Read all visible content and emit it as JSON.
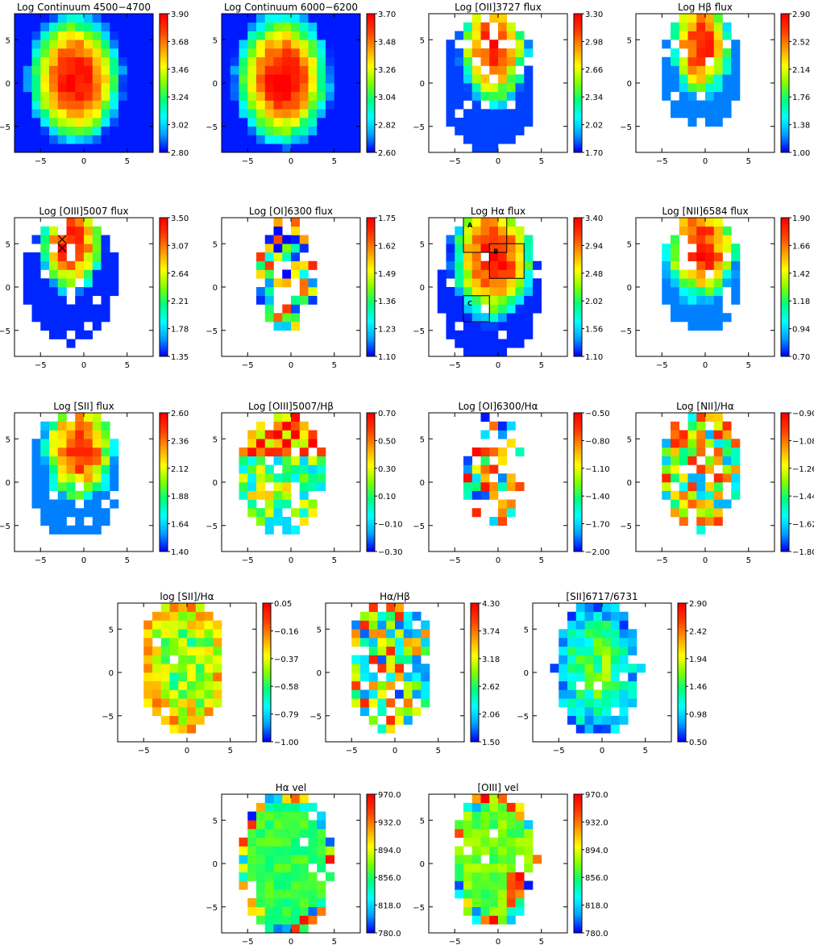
{
  "figure": {
    "colors": {
      "colormap": [
        "#0000ff",
        "#00a0ff",
        "#00ffff",
        "#00ff80",
        "#80ff00",
        "#ffff00",
        "#ffa000",
        "#ff4000",
        "#ff0000"
      ],
      "axes": "#000000",
      "marker": "#000000",
      "region_box": "#000000"
    }
  },
  "chart_data": [
    {
      "type": "heatmap",
      "title": "Log Continuum 4500−4700",
      "xlim": [
        -8,
        8
      ],
      "ylim": [
        -8,
        8
      ],
      "cbar_ticks": [
        "3.90",
        "3.68",
        "3.46",
        "3.24",
        "3.02",
        "2.80"
      ],
      "cmin": 2.8,
      "cmax": 3.9,
      "pattern": "cont1"
    },
    {
      "type": "heatmap",
      "title": "Log Continuum 6000−6200",
      "xlim": [
        -8,
        8
      ],
      "ylim": [
        -8,
        8
      ],
      "cbar_ticks": [
        "3.70",
        "3.48",
        "3.26",
        "3.04",
        "2.82",
        "2.60"
      ],
      "cmin": 2.6,
      "cmax": 3.7,
      "pattern": "cont2"
    },
    {
      "type": "heatmap",
      "title": "Log [OII]3727 flux",
      "xlim": [
        -8,
        8
      ],
      "ylim": [
        -8,
        8
      ],
      "cbar_ticks": [
        "3.30",
        "2.98",
        "2.66",
        "2.34",
        "2.02",
        "1.70"
      ],
      "cmin": 1.7,
      "cmax": 3.3,
      "pattern": "oii"
    },
    {
      "type": "heatmap",
      "title": "Log Hβ flux",
      "xlim": [
        -8,
        8
      ],
      "ylim": [
        -8,
        8
      ],
      "cbar_ticks": [
        "2.90",
        "2.52",
        "2.14",
        "1.76",
        "1.38",
        "1.00"
      ],
      "cmin": 1.0,
      "cmax": 2.9,
      "pattern": "hb"
    },
    {
      "type": "heatmap",
      "title": "Log [OIII]5007 flux",
      "xlim": [
        -8,
        8
      ],
      "ylim": [
        -8,
        8
      ],
      "cbar_ticks": [
        "3.50",
        "3.07",
        "2.64",
        "2.21",
        "1.78",
        "1.35"
      ],
      "cmin": 1.35,
      "cmax": 3.5,
      "pattern": "oiii",
      "markers": [
        {
          "x": -2.5,
          "y": 5.5,
          "symbol": "x"
        },
        {
          "x": -2.5,
          "y": 4.5,
          "symbol": "x"
        }
      ]
    },
    {
      "type": "heatmap",
      "title": "Log [OI]6300 flux",
      "xlim": [
        -8,
        8
      ],
      "ylim": [
        -8,
        8
      ],
      "cbar_ticks": [
        "1.75",
        "1.62",
        "1.49",
        "1.36",
        "1.23",
        "1.10"
      ],
      "cmin": 1.1,
      "cmax": 1.75,
      "pattern": "oi"
    },
    {
      "type": "heatmap",
      "title": "Log Hα flux",
      "xlim": [
        -8,
        8
      ],
      "ylim": [
        -8,
        8
      ],
      "cbar_ticks": [
        "3.40",
        "2.94",
        "2.48",
        "2.02",
        "1.56",
        "1.10"
      ],
      "cmin": 1.1,
      "cmax": 3.4,
      "pattern": "ha",
      "regions": [
        {
          "label": "A",
          "x0": -4,
          "x1": 1,
          "y0": 4,
          "y1": 8
        },
        {
          "label": "B",
          "x0": -1,
          "x1": 3,
          "y0": 1,
          "y1": 5
        },
        {
          "label": "C",
          "x0": -4,
          "x1": -1,
          "y0": -4,
          "y1": -1
        }
      ]
    },
    {
      "type": "heatmap",
      "title": "Log [NII]6584 flux",
      "xlim": [
        -8,
        8
      ],
      "ylim": [
        -8,
        8
      ],
      "cbar_ticks": [
        "1.90",
        "1.66",
        "1.42",
        "1.18",
        "0.94",
        "0.70"
      ],
      "cmin": 0.7,
      "cmax": 1.9,
      "pattern": "nii"
    },
    {
      "type": "heatmap",
      "title": "Log [SII] flux",
      "xlim": [
        -8,
        8
      ],
      "ylim": [
        -8,
        8
      ],
      "cbar_ticks": [
        "2.60",
        "2.36",
        "2.12",
        "1.88",
        "1.64",
        "1.40"
      ],
      "cmin": 1.4,
      "cmax": 2.6,
      "pattern": "sii"
    },
    {
      "type": "heatmap",
      "title": "Log [OIII]5007/Hβ",
      "xlim": [
        -8,
        8
      ],
      "ylim": [
        -8,
        8
      ],
      "cbar_ticks": [
        "0.70",
        "0.50",
        "0.30",
        "0.10",
        "−0.10",
        "−0.30"
      ],
      "cmin": -0.3,
      "cmax": 0.7,
      "pattern": "oiiihb"
    },
    {
      "type": "heatmap",
      "title": "Log [OI]6300/Hα",
      "xlim": [
        -8,
        8
      ],
      "ylim": [
        -8,
        8
      ],
      "cbar_ticks": [
        "−0.50",
        "−0.80",
        "−1.10",
        "−1.40",
        "−1.70",
        "−2.00"
      ],
      "cmin": -2.0,
      "cmax": -0.5,
      "pattern": "oiha"
    },
    {
      "type": "heatmap",
      "title": "Log [NII]/Hα",
      "xlim": [
        -8,
        8
      ],
      "ylim": [
        -8,
        8
      ],
      "cbar_ticks": [
        "−0.90",
        "−1.08",
        "−1.26",
        "−1.44",
        "−1.62",
        "−1.80"
      ],
      "cmin": -1.8,
      "cmax": -0.9,
      "pattern": "niiha"
    },
    {
      "type": "heatmap",
      "title": "log [SII]/Hα",
      "xlim": [
        -8,
        8
      ],
      "ylim": [
        -8,
        8
      ],
      "cbar_ticks": [
        "0.05",
        "−0.16",
        "−0.37",
        "−0.58",
        "−0.79",
        "−1.00"
      ],
      "cmin": -1.0,
      "cmax": 0.05,
      "pattern": "siiha"
    },
    {
      "type": "heatmap",
      "title": "Hα/Hβ",
      "xlim": [
        -8,
        8
      ],
      "ylim": [
        -8,
        8
      ],
      "cbar_ticks": [
        "4.30",
        "3.74",
        "3.18",
        "2.62",
        "2.06",
        "1.50"
      ],
      "cmin": 1.5,
      "cmax": 4.3,
      "pattern": "hahb"
    },
    {
      "type": "heatmap",
      "title": "[SII]6717/6731",
      "xlim": [
        -8,
        8
      ],
      "ylim": [
        -8,
        8
      ],
      "cbar_ticks": [
        "2.90",
        "2.42",
        "1.94",
        "1.46",
        "0.98",
        "0.50"
      ],
      "cmin": 0.5,
      "cmax": 2.9,
      "pattern": "siiratio"
    },
    {
      "type": "heatmap",
      "title": "Hα vel",
      "xlim": [
        -8,
        8
      ],
      "ylim": [
        -8,
        8
      ],
      "cbar_ticks": [
        "970.0",
        "932.0",
        "894.0",
        "856.0",
        "818.0",
        "780.0"
      ],
      "cmin": 780.0,
      "cmax": 970.0,
      "pattern": "havel"
    },
    {
      "type": "heatmap",
      "title": "[OIII] vel",
      "xlim": [
        -8,
        8
      ],
      "ylim": [
        -8,
        8
      ],
      "cbar_ticks": [
        "970.0",
        "932.0",
        "894.0",
        "856.0",
        "818.0",
        "780.0"
      ],
      "cmin": 780.0,
      "cmax": 970.0,
      "pattern": "oiiivel"
    }
  ]
}
